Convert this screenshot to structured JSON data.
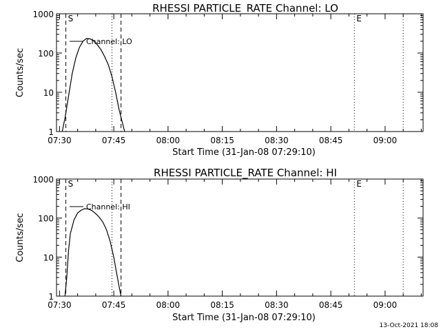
{
  "footer": "13-Oct-2021 18:08",
  "chart_data": [
    {
      "type": "line",
      "title": "RHESSI PARTICLE_RATE Channel: LO",
      "xlabel": "Start Time (31-Jan-08 07:29:10)",
      "ylabel": "Counts/sec",
      "yscale": "log",
      "ylim": [
        1,
        1000
      ],
      "xlim": [
        "07:29:10",
        "09:10:30"
      ],
      "y_ticks": [
        "1",
        "10",
        "100",
        "1000"
      ],
      "x_ticks": [
        "07:30",
        "07:45",
        "08:00",
        "08:15",
        "08:30",
        "08:45",
        "09:00"
      ],
      "legend": "Channel: LO",
      "series": [
        {
          "name": "Channel: LO",
          "x": [
            "07:30:45",
            "07:31:30",
            "07:32:30",
            "07:33:30",
            "07:34:30",
            "07:35:30",
            "07:36:30",
            "07:37:30",
            "07:38:30",
            "07:39:30",
            "07:40:30",
            "07:41:30",
            "07:42:30",
            "07:43:30",
            "07:44:30",
            "07:45:30",
            "07:46:30",
            "07:47:30",
            "07:48:00"
          ],
          "y": [
            1,
            2.2,
            8,
            30,
            75,
            140,
            200,
            235,
            230,
            200,
            160,
            120,
            80,
            50,
            25,
            10,
            3.5,
            1.5,
            1
          ]
        }
      ],
      "markers": [
        {
          "label": "S",
          "time": "07:31:45",
          "style": "dashed"
        },
        {
          "label": "",
          "time": "07:44:30",
          "style": "dotted"
        },
        {
          "label": "",
          "time": "07:47:00",
          "style": "dashed"
        },
        {
          "label": "E",
          "time": "08:51:30",
          "style": "dotted"
        },
        {
          "label": "",
          "time": "09:05:00",
          "style": "dotted"
        }
      ]
    },
    {
      "type": "line",
      "title": "RHESSI PARTICLE_RATE Channel: HI",
      "xlabel": "Start Time (31-Jan-08 07:29:10)",
      "ylabel": "Counts/sec",
      "yscale": "log",
      "ylim": [
        1,
        1000
      ],
      "xlim": [
        "07:29:10",
        "09:10:30"
      ],
      "y_ticks": [
        "1",
        "10",
        "100",
        "1000"
      ],
      "x_ticks": [
        "07:30",
        "07:45",
        "08:00",
        "08:15",
        "08:30",
        "08:45",
        "09:00"
      ],
      "legend": "Channel: HI",
      "series": [
        {
          "name": "Channel: HI",
          "x": [
            "07:31:30",
            "07:32:00",
            "07:32:30",
            "07:33:00",
            "07:34:00",
            "07:35:00",
            "07:36:00",
            "07:37:00",
            "07:38:00",
            "07:39:00",
            "07:40:00",
            "07:41:00",
            "07:42:00",
            "07:43:00",
            "07:44:00",
            "07:45:00",
            "07:45:45",
            "07:46:30",
            "07:47:00"
          ],
          "y": [
            1,
            3,
            15,
            40,
            90,
            135,
            160,
            175,
            170,
            155,
            130,
            105,
            78,
            50,
            25,
            10,
            4,
            1.7,
            1
          ]
        }
      ],
      "markers": [
        {
          "label": "S",
          "time": "07:31:45",
          "style": "dashed"
        },
        {
          "label": "",
          "time": "07:44:30",
          "style": "dotted"
        },
        {
          "label": "",
          "time": "07:47:00",
          "style": "dashed"
        },
        {
          "label": "E",
          "time": "08:51:30",
          "style": "dotted"
        },
        {
          "label": "",
          "time": "09:05:00",
          "style": "dotted"
        }
      ]
    }
  ]
}
